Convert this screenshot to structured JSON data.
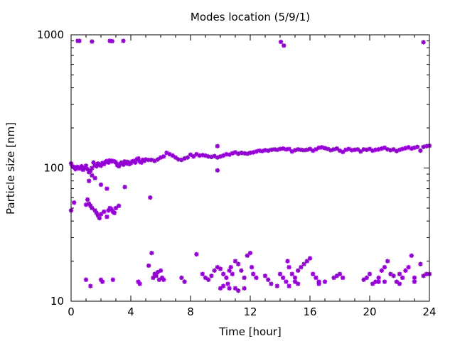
{
  "chart_data": {
    "type": "scatter",
    "title": "Modes location (5/9/1)",
    "xlabel": "Time [hour]",
    "ylabel": "Particle size [nm]",
    "xlim": [
      0,
      24
    ],
    "ylim": [
      10,
      1000
    ],
    "yscale": "log",
    "grid": false,
    "legend": "none",
    "marker_color": "#9400D3",
    "x_ticks": [
      0,
      4,
      8,
      12,
      16,
      20,
      24
    ],
    "x_tick_labels": [
      "0",
      "4",
      "8",
      "12",
      "16",
      "20",
      "24"
    ],
    "y_ticks": [
      10,
      100,
      1000
    ],
    "y_tick_labels": [
      "10",
      "100",
      "1000"
    ],
    "series": [
      {
        "points": [
          [
            0.45,
            900
          ],
          [
            0.55,
            900
          ],
          [
            1.4,
            890
          ],
          [
            2.6,
            900
          ],
          [
            2.75,
            895
          ],
          [
            3.5,
            900
          ],
          [
            14.05,
            885
          ],
          [
            14.25,
            830
          ],
          [
            23.6,
            880
          ],
          [
            0.0,
            108
          ],
          [
            0.1,
            103
          ],
          [
            0.2,
            101
          ],
          [
            0.3,
            98
          ],
          [
            0.4,
            102
          ],
          [
            0.5,
            100
          ],
          [
            0.6,
            99
          ],
          [
            0.7,
            103
          ],
          [
            0.8,
            97
          ],
          [
            0.9,
            100
          ],
          [
            1.0,
            104
          ],
          [
            1.1,
            98
          ],
          [
            1.2,
            93
          ],
          [
            1.3,
            95
          ],
          [
            1.4,
            100
          ],
          [
            1.5,
            110
          ],
          [
            1.6,
            105
          ],
          [
            1.7,
            103
          ],
          [
            1.8,
            108
          ],
          [
            1.9,
            106
          ],
          [
            2.0,
            104
          ],
          [
            2.1,
            109
          ],
          [
            2.2,
            107
          ],
          [
            2.3,
            111
          ],
          [
            2.4,
            113
          ],
          [
            2.5,
            110
          ],
          [
            2.6,
            114
          ],
          [
            2.7,
            112
          ],
          [
            2.8,
            113
          ],
          [
            2.9,
            112
          ],
          [
            3.0,
            110
          ],
          [
            3.1,
            105
          ],
          [
            3.2,
            103
          ],
          [
            3.3,
            108
          ],
          [
            3.4,
            110
          ],
          [
            3.5,
            106
          ],
          [
            3.6,
            112
          ],
          [
            3.7,
            108
          ],
          [
            3.8,
            111
          ],
          [
            3.9,
            107
          ],
          [
            4.0,
            109
          ],
          [
            4.1,
            112
          ],
          [
            4.2,
            113
          ],
          [
            4.3,
            110
          ],
          [
            4.4,
            116
          ],
          [
            4.5,
            118
          ],
          [
            4.6,
            112
          ],
          [
            4.7,
            110
          ],
          [
            4.8,
            115
          ],
          [
            4.9,
            113
          ],
          [
            5.0,
            116
          ],
          [
            5.2,
            115
          ],
          [
            5.4,
            115
          ],
          [
            5.6,
            113
          ],
          [
            5.8,
            116
          ],
          [
            6.0,
            120
          ],
          [
            6.2,
            122
          ],
          [
            6.4,
            130
          ],
          [
            6.6,
            127
          ],
          [
            6.8,
            124
          ],
          [
            7.0,
            120
          ],
          [
            7.2,
            116
          ],
          [
            7.4,
            115
          ],
          [
            7.6,
            118
          ],
          [
            7.8,
            120
          ],
          [
            8.0,
            126
          ],
          [
            8.2,
            122
          ],
          [
            8.4,
            127
          ],
          [
            8.6,
            124
          ],
          [
            8.8,
            125
          ],
          [
            9.0,
            124
          ],
          [
            9.2,
            122
          ],
          [
            9.4,
            121
          ],
          [
            9.6,
            123
          ],
          [
            9.8,
            120
          ],
          [
            10.0,
            122
          ],
          [
            10.2,
            124
          ],
          [
            10.4,
            127
          ],
          [
            10.6,
            126
          ],
          [
            10.8,
            129
          ],
          [
            11.0,
            131
          ],
          [
            11.2,
            128
          ],
          [
            11.4,
            130
          ],
          [
            11.6,
            129
          ],
          [
            11.8,
            128
          ],
          [
            12.0,
            130
          ],
          [
            12.2,
            131
          ],
          [
            12.4,
            133
          ],
          [
            12.6,
            135
          ],
          [
            12.8,
            134
          ],
          [
            13.0,
            136
          ],
          [
            13.2,
            135
          ],
          [
            13.4,
            137
          ],
          [
            13.6,
            138
          ],
          [
            13.8,
            137
          ],
          [
            14.0,
            139
          ],
          [
            14.2,
            140
          ],
          [
            14.4,
            138
          ],
          [
            14.6,
            139
          ],
          [
            14.8,
            133
          ],
          [
            15.0,
            136
          ],
          [
            15.2,
            138
          ],
          [
            15.4,
            137
          ],
          [
            15.6,
            136
          ],
          [
            15.8,
            137
          ],
          [
            16.0,
            139
          ],
          [
            16.2,
            135
          ],
          [
            16.4,
            138
          ],
          [
            16.6,
            142
          ],
          [
            16.8,
            143
          ],
          [
            17.0,
            141
          ],
          [
            17.2,
            139
          ],
          [
            17.4,
            136
          ],
          [
            17.6,
            138
          ],
          [
            17.8,
            140
          ],
          [
            18.0,
            135
          ],
          [
            18.2,
            132
          ],
          [
            18.4,
            137
          ],
          [
            18.6,
            139
          ],
          [
            18.8,
            136
          ],
          [
            19.0,
            137
          ],
          [
            19.2,
            138
          ],
          [
            19.4,
            133
          ],
          [
            19.6,
            138
          ],
          [
            19.8,
            137
          ],
          [
            20.0,
            139
          ],
          [
            20.2,
            135
          ],
          [
            20.4,
            137
          ],
          [
            20.6,
            138
          ],
          [
            20.8,
            140
          ],
          [
            21.0,
            142
          ],
          [
            21.2,
            138
          ],
          [
            21.4,
            136
          ],
          [
            21.6,
            138
          ],
          [
            21.8,
            134
          ],
          [
            22.0,
            137
          ],
          [
            22.2,
            139
          ],
          [
            22.4,
            141
          ],
          [
            22.6,
            143
          ],
          [
            22.8,
            140
          ],
          [
            23.0,
            142
          ],
          [
            23.2,
            144
          ],
          [
            23.4,
            135
          ],
          [
            23.6,
            144
          ],
          [
            23.8,
            146
          ],
          [
            24.0,
            147
          ],
          [
            9.8,
            146
          ],
          [
            9.8,
            96
          ],
          [
            1.2,
            80
          ],
          [
            1.4,
            88
          ],
          [
            1.6,
            84
          ],
          [
            2.0,
            75
          ],
          [
            2.4,
            70
          ],
          [
            3.6,
            72
          ],
          [
            5.3,
            60
          ],
          [
            0.0,
            48
          ],
          [
            0.2,
            55
          ],
          [
            1.0,
            53
          ],
          [
            1.1,
            58
          ],
          [
            1.2,
            54
          ],
          [
            1.3,
            52
          ],
          [
            1.4,
            50
          ],
          [
            1.6,
            48
          ],
          [
            1.7,
            46
          ],
          [
            1.8,
            44
          ],
          [
            1.9,
            42
          ],
          [
            2.0,
            45
          ],
          [
            2.2,
            47
          ],
          [
            2.4,
            43
          ],
          [
            2.5,
            48
          ],
          [
            2.6,
            50
          ],
          [
            2.7,
            49
          ],
          [
            2.8,
            47
          ],
          [
            2.9,
            46
          ],
          [
            3.0,
            50
          ],
          [
            3.2,
            52
          ],
          [
            1.0,
            14.5
          ],
          [
            1.3,
            13
          ],
          [
            2.0,
            14.5
          ],
          [
            2.1,
            14
          ],
          [
            2.8,
            14.5
          ],
          [
            4.5,
            14
          ],
          [
            4.6,
            13.5
          ],
          [
            5.2,
            18.5
          ],
          [
            5.4,
            23
          ],
          [
            5.5,
            15
          ],
          [
            5.6,
            16
          ],
          [
            5.7,
            15.5
          ],
          [
            5.8,
            16.5
          ],
          [
            5.9,
            14.5
          ],
          [
            6.0,
            17
          ],
          [
            6.1,
            15
          ],
          [
            6.2,
            14.5
          ],
          [
            7.4,
            15
          ],
          [
            7.6,
            14
          ],
          [
            8.4,
            22.5
          ],
          [
            8.8,
            16
          ],
          [
            9.0,
            15
          ],
          [
            9.2,
            14.5
          ],
          [
            9.4,
            15.5
          ],
          [
            9.6,
            17
          ],
          [
            9.8,
            18
          ],
          [
            10.0,
            17.5
          ],
          [
            10.2,
            16
          ],
          [
            10.4,
            15
          ],
          [
            10.5,
            13.5
          ],
          [
            10.6,
            17
          ],
          [
            10.7,
            18
          ],
          [
            10.8,
            16
          ],
          [
            11.0,
            20
          ],
          [
            11.2,
            19
          ],
          [
            11.4,
            17
          ],
          [
            11.6,
            15
          ],
          [
            11.8,
            22
          ],
          [
            12.0,
            23
          ],
          [
            12.1,
            18
          ],
          [
            12.2,
            16
          ],
          [
            12.4,
            15
          ],
          [
            13.0,
            15.5
          ],
          [
            13.2,
            14.5
          ],
          [
            13.4,
            13.5
          ],
          [
            13.8,
            13
          ],
          [
            14.0,
            16
          ],
          [
            14.2,
            15
          ],
          [
            14.4,
            14
          ],
          [
            14.5,
            20
          ],
          [
            14.6,
            18
          ],
          [
            14.8,
            16
          ],
          [
            15.0,
            15
          ],
          [
            15.2,
            17
          ],
          [
            15.4,
            18
          ],
          [
            15.6,
            19
          ],
          [
            15.8,
            20
          ],
          [
            16.0,
            21
          ],
          [
            16.2,
            16
          ],
          [
            16.4,
            15
          ],
          [
            16.6,
            14
          ],
          [
            17.0,
            14
          ],
          [
            17.6,
            15
          ],
          [
            17.8,
            15.5
          ],
          [
            18.0,
            16
          ],
          [
            18.2,
            15
          ],
          [
            19.6,
            14.5
          ],
          [
            19.8,
            15
          ],
          [
            20.0,
            16
          ],
          [
            20.2,
            13.5
          ],
          [
            20.4,
            14
          ],
          [
            20.6,
            15
          ],
          [
            20.8,
            17
          ],
          [
            21.0,
            18
          ],
          [
            21.2,
            20
          ],
          [
            21.4,
            16
          ],
          [
            21.6,
            15.5
          ],
          [
            21.8,
            14
          ],
          [
            22.0,
            16
          ],
          [
            22.2,
            15
          ],
          [
            22.4,
            17
          ],
          [
            22.6,
            18
          ],
          [
            22.8,
            22
          ],
          [
            23.0,
            15
          ],
          [
            23.4,
            19
          ],
          [
            23.6,
            15.5
          ],
          [
            23.8,
            16
          ],
          [
            24.0,
            16
          ],
          [
            10.0,
            12.5
          ],
          [
            10.2,
            13
          ],
          [
            10.6,
            12.5
          ],
          [
            11.0,
            12.5
          ],
          [
            11.2,
            12
          ],
          [
            11.6,
            12.5
          ],
          [
            14.6,
            13
          ],
          [
            15.0,
            14
          ],
          [
            15.2,
            13.5
          ],
          [
            16.6,
            13.5
          ],
          [
            20.6,
            14
          ],
          [
            21.0,
            14
          ],
          [
            22.0,
            13.5
          ],
          [
            23.0,
            14
          ]
        ]
      }
    ]
  }
}
